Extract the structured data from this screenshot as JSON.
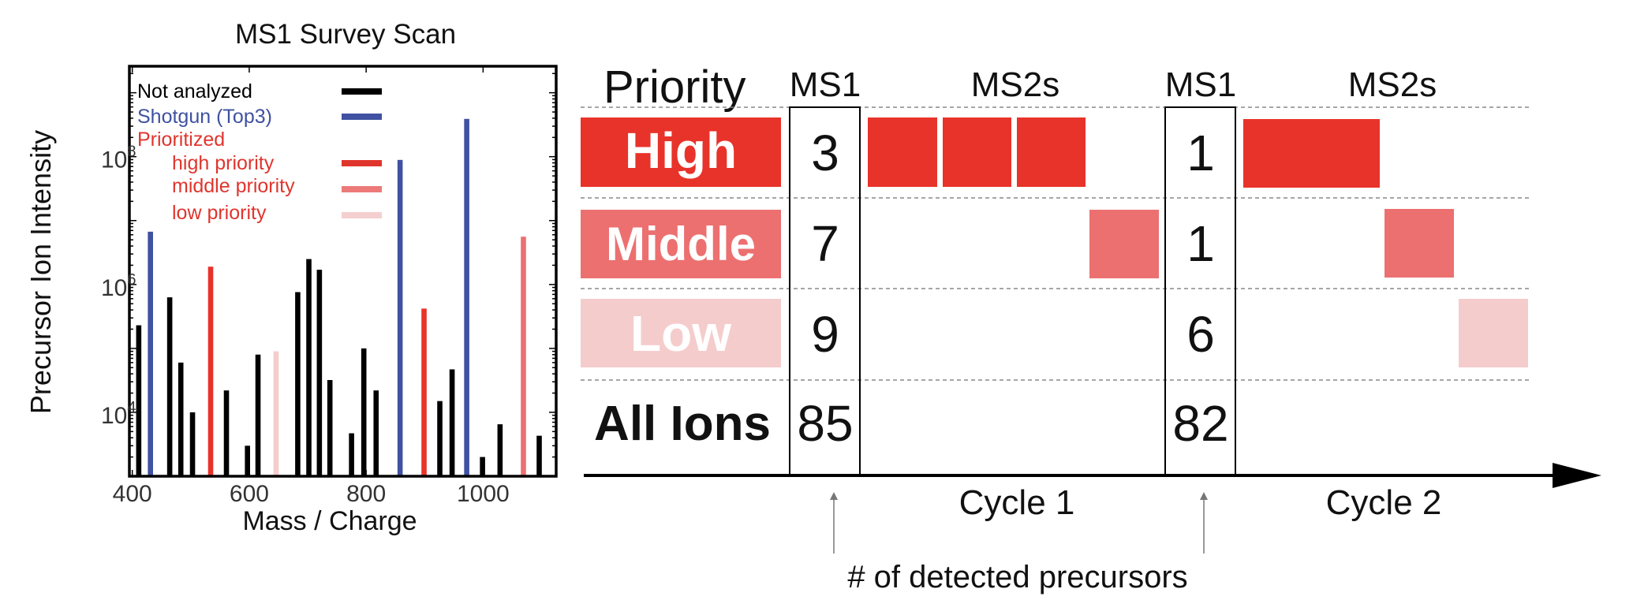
{
  "chart_data": {
    "type": "bar",
    "title": "MS1 Survey Scan",
    "xlabel": "Mass / Charge",
    "ylabel": "Precursor Ion Intensity",
    "xlim": [
      395,
      1125
    ],
    "ylim": [
      1000,
      2600000000
    ],
    "yscale": "log",
    "xticks": [
      "400",
      "600",
      "800",
      "1000"
    ],
    "xtick_values": [
      400,
      600,
      800,
      1000
    ],
    "yticks": [
      {
        "base": "10",
        "exp": "4",
        "value": 10000
      },
      {
        "base": "10",
        "exp": "6",
        "value": 1000000
      },
      {
        "base": "10",
        "exp": "8",
        "value": 100000000
      }
    ],
    "legend": {
      "placement": "top-left",
      "entries": [
        {
          "label": "Not analyzed",
          "color": "#000000",
          "text_color": "#000000",
          "key": "not"
        },
        {
          "label": "Shotgun (Top3)",
          "color": "#3f51a0",
          "text_color": "#3f51a0",
          "key": "shotgun"
        },
        {
          "label": "Prioritized",
          "color": null,
          "text_color": "#e0352d",
          "key": "heading"
        },
        {
          "label": "high priority",
          "color": "#e0352d",
          "text_color": "#e0352d",
          "key": "high"
        },
        {
          "label": "middle priority",
          "color": "#ec7a78",
          "text_color": "#e0352d",
          "key": "middle"
        },
        {
          "label": "low priority",
          "color": "#f5cfcf",
          "text_color": "#e0352d",
          "key": "low"
        }
      ]
    },
    "colors": {
      "not": "#000000",
      "shotgun": "#3f51a0",
      "high": "#e8332a",
      "middle": "#ec7070",
      "low": "#f5cccc"
    },
    "bars": [
      {
        "x": 411,
        "y": 230000,
        "cat": "not"
      },
      {
        "x": 431,
        "y": 6700000,
        "cat": "shotgun"
      },
      {
        "x": 464,
        "y": 630000,
        "cat": "not"
      },
      {
        "x": 483,
        "y": 60000,
        "cat": "not"
      },
      {
        "x": 503,
        "y": 10000,
        "cat": "not"
      },
      {
        "x": 534,
        "y": 1900000,
        "cat": "high"
      },
      {
        "x": 561,
        "y": 22000,
        "cat": "not"
      },
      {
        "x": 597,
        "y": 3000,
        "cat": "not"
      },
      {
        "x": 615,
        "y": 80000,
        "cat": "not"
      },
      {
        "x": 646,
        "y": 90000,
        "cat": "low"
      },
      {
        "x": 683,
        "y": 760000,
        "cat": "not"
      },
      {
        "x": 702,
        "y": 2500000,
        "cat": "not"
      },
      {
        "x": 720,
        "y": 1700000,
        "cat": "not"
      },
      {
        "x": 738,
        "y": 32000,
        "cat": "not"
      },
      {
        "x": 775,
        "y": 4700,
        "cat": "not"
      },
      {
        "x": 796,
        "y": 100000,
        "cat": "not"
      },
      {
        "x": 817,
        "y": 22000,
        "cat": "not"
      },
      {
        "x": 858,
        "y": 89000000,
        "cat": "shotgun"
      },
      {
        "x": 899,
        "y": 420000,
        "cat": "high"
      },
      {
        "x": 926,
        "y": 15000,
        "cat": "not"
      },
      {
        "x": 947,
        "y": 47000,
        "cat": "not"
      },
      {
        "x": 972,
        "y": 390000000,
        "cat": "shotgun"
      },
      {
        "x": 999,
        "y": 2000,
        "cat": "not"
      },
      {
        "x": 1029,
        "y": 6500,
        "cat": "not"
      },
      {
        "x": 1069,
        "y": 5600000,
        "cat": "middle"
      },
      {
        "x": 1096,
        "y": 4300,
        "cat": "not"
      }
    ]
  },
  "diagram": {
    "priority_header": "Priority",
    "ms1_label": "MS1",
    "ms2_label": "MS2s",
    "rows": [
      {
        "label": "High",
        "color": "#e8332a",
        "label_color": "#ffffff",
        "cycle1": "3",
        "cycle2": "1"
      },
      {
        "label": "Middle",
        "color": "#ec7070",
        "label_color": "#ffffff",
        "cycle1": "7",
        "cycle2": "1"
      },
      {
        "label": "Low",
        "color": "#f5cccc",
        "label_color": "#ffffff",
        "cycle1": "9",
        "cycle2": "6"
      },
      {
        "label": "All Ions",
        "color": null,
        "label_color": "#111111",
        "cycle1": "85",
        "cycle2": "82"
      }
    ],
    "cycles": [
      "Cycle 1",
      "Cycle 2"
    ],
    "annotation": "# of detected precursors"
  }
}
